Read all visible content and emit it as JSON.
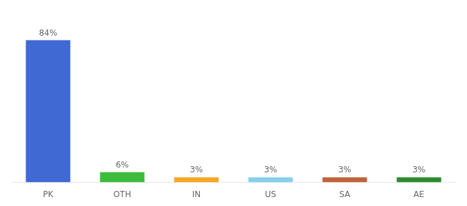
{
  "chart_data": {
    "type": "bar",
    "categories": [
      "PK",
      "OTH",
      "IN",
      "US",
      "SA",
      "AE"
    ],
    "values": [
      84,
      6,
      3,
      3,
      3,
      3
    ],
    "value_labels": [
      "84%",
      "6%",
      "3%",
      "3%",
      "3%",
      "3%"
    ],
    "colors": [
      "#4169d4",
      "#3dbb3d",
      "#f5a623",
      "#87ceeb",
      "#c0633a",
      "#2d8a2d"
    ],
    "ylim": [
      0,
      98
    ],
    "grid": false,
    "data_labels": true,
    "tick_labels": "x"
  }
}
